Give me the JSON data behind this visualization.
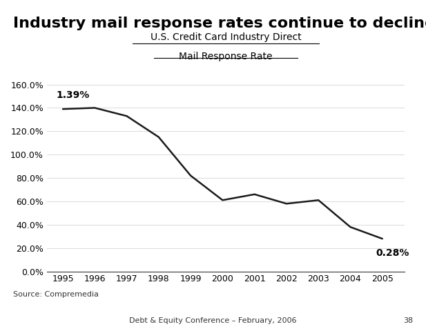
{
  "title": "Industry mail response rates continue to decline",
  "chart_title_line1": "U.S. Credit Card Industry Direct",
  "chart_title_line2": "Mail Response Rate",
  "years": [
    1995,
    1996,
    1997,
    1998,
    1999,
    2000,
    2001,
    2002,
    2003,
    2004,
    2005
  ],
  "values": [
    1.39,
    1.4,
    1.33,
    1.15,
    0.82,
    0.61,
    0.66,
    0.58,
    0.61,
    0.38,
    0.28
  ],
  "ylim": [
    0.0,
    1.7
  ],
  "yticks": [
    0.0,
    0.2,
    0.4,
    0.6,
    0.8,
    1.0,
    1.2,
    1.4,
    1.6
  ],
  "annotation_start": "1.39%",
  "annotation_end": "0.28%",
  "source_text": "Source: Compremedia",
  "footer_text": "Debt & Equity Conference – February, 2006",
  "page_number": "38",
  "line_color": "#1a1a1a",
  "bg_color": "#ffffff",
  "title_fontsize": 16,
  "chart_title_fontsize": 10,
  "annotation_fontsize": 10,
  "axis_fontsize": 9,
  "source_fontsize": 8,
  "footer_fontsize": 8
}
